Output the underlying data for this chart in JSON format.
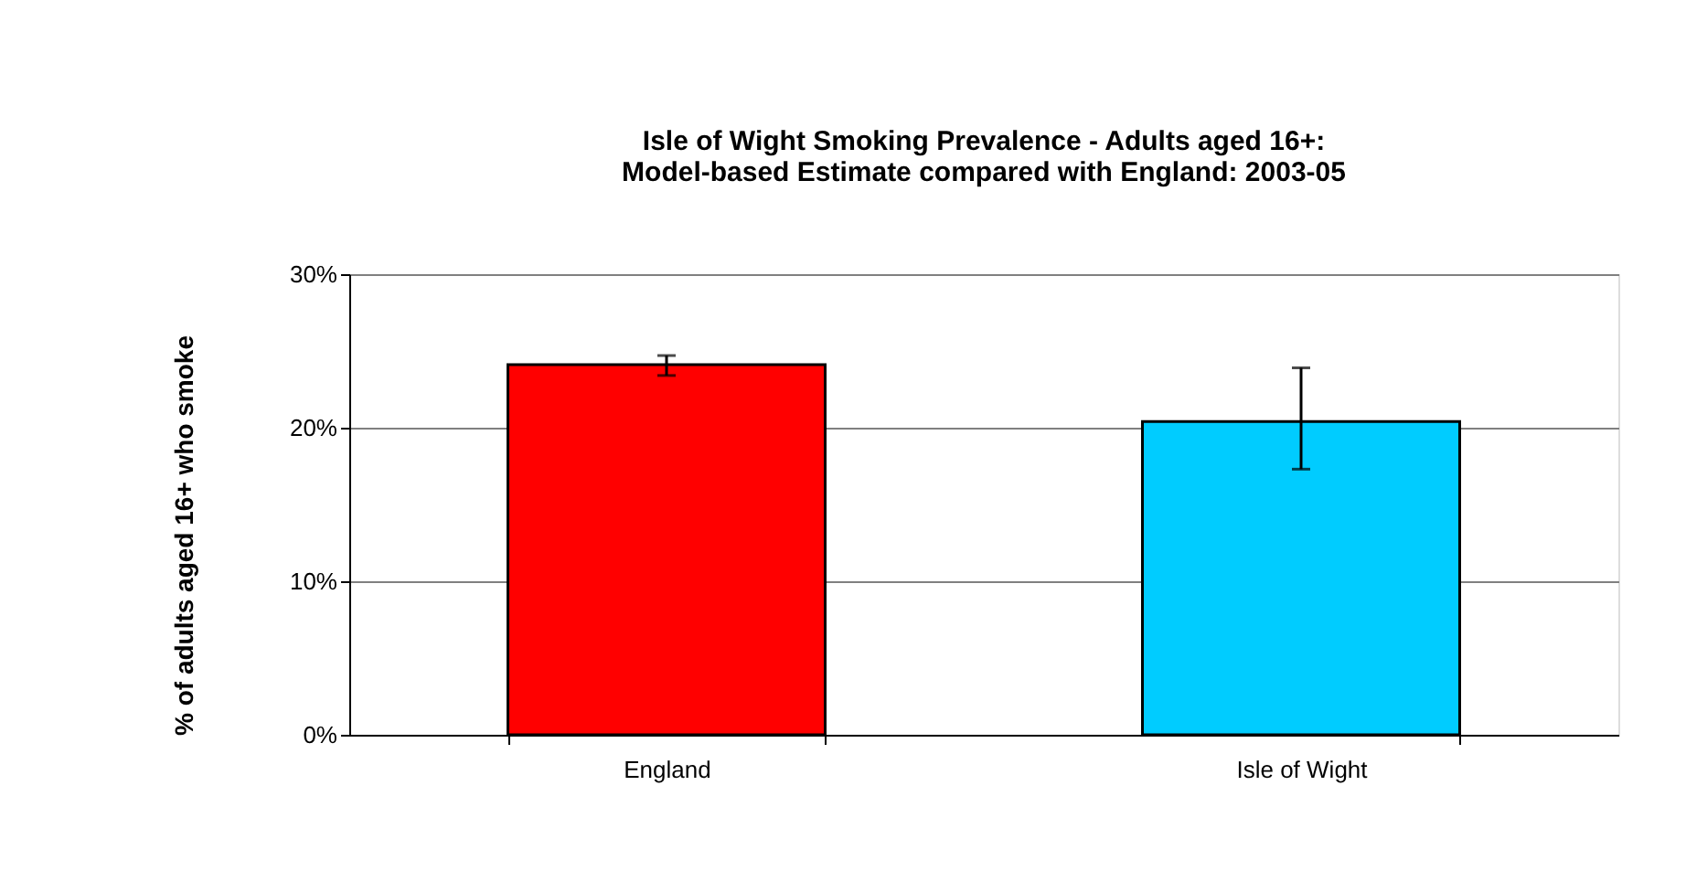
{
  "chart_data": {
    "type": "bar",
    "title": [
      "Isle of Wight Smoking Prevalence - Adults aged 16+:",
      "Model-based Estimate compared with England: 2003-05"
    ],
    "ylabel": "% of adults aged 16+ who smoke",
    "categories": [
      "England",
      "Isle of Wight"
    ],
    "values": [
      24.1,
      20.4
    ],
    "colors": [
      "#ff0000",
      "#00ccff"
    ],
    "errors": [
      [
        23.4,
        24.7
      ],
      [
        17.3,
        23.9
      ]
    ],
    "ylim": [
      0,
      30
    ],
    "yticks": [
      {
        "value": 0,
        "label": "0%"
      },
      {
        "value": 10,
        "label": "10%"
      },
      {
        "value": 20,
        "label": "20%"
      },
      {
        "value": 30,
        "label": "30%"
      }
    ],
    "grid": "y"
  }
}
